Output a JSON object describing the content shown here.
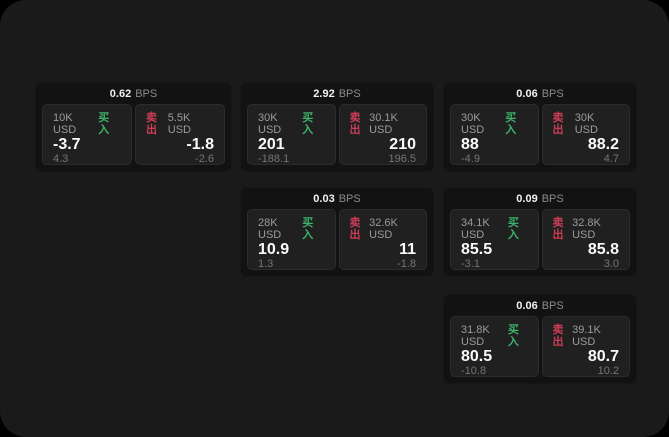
{
  "labels": {
    "bps": "BPS",
    "buy": "买入",
    "sell": "卖出"
  },
  "colors": {
    "buy_green": "#3db269",
    "sell_red": "#cc3d55",
    "panel_bg": "#202020",
    "card_bg": "#121212",
    "page_bg": "#1a1a1a"
  },
  "cards": [
    {
      "bps": "0.62",
      "buy": {
        "size": "10K USD",
        "price": "-3.7",
        "delta": "4.3"
      },
      "sell": {
        "size": "5.5K USD",
        "price": "-1.8",
        "delta": "-2.6"
      }
    },
    {
      "bps": "2.92",
      "buy": {
        "size": "30K USD",
        "price": "201",
        "delta": "-188.1"
      },
      "sell": {
        "size": "30.1K USD",
        "price": "210",
        "delta": "196.5"
      }
    },
    {
      "bps": "0.06",
      "buy": {
        "size": "30K USD",
        "price": "88",
        "delta": "-4.9"
      },
      "sell": {
        "size": "30K USD",
        "price": "88.2",
        "delta": "4.7"
      }
    },
    {
      "bps": "0.03",
      "buy": {
        "size": "28K USD",
        "price": "10.9",
        "delta": "1.3"
      },
      "sell": {
        "size": "32.6K USD",
        "price": "11",
        "delta": "-1.8"
      }
    },
    {
      "bps": "0.09",
      "buy": {
        "size": "34.1K USD",
        "price": "85.5",
        "delta": "-3.1"
      },
      "sell": {
        "size": "32.8K USD",
        "price": "85.8",
        "delta": "3.0"
      }
    },
    {
      "bps": "0.06",
      "buy": {
        "size": "31.8K USD",
        "price": "80.5",
        "delta": "-10.8"
      },
      "sell": {
        "size": "39.1K USD",
        "price": "80.7",
        "delta": "10.2"
      }
    }
  ]
}
